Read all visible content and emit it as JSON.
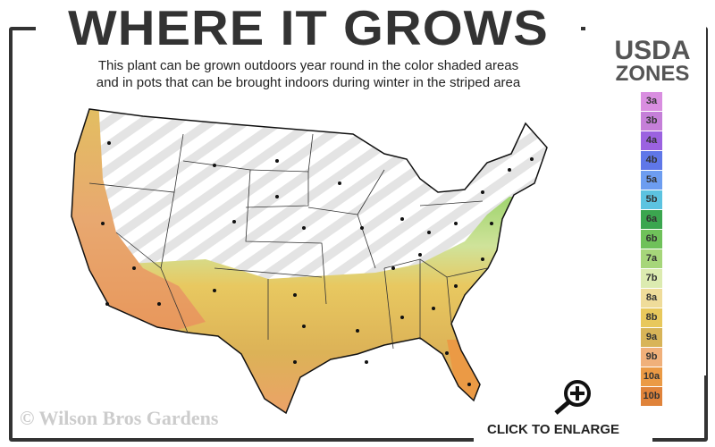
{
  "header": {
    "title": "WHERE IT GROWS",
    "subtitle_line1": "This plant can be grown outdoors year round in the color shaded areas",
    "subtitle_line2": "and in pots that can be brought indoors during winter in the striped area"
  },
  "legend": {
    "title_line1": "USDA",
    "title_line2": "ZONES",
    "zones": [
      {
        "label": "3a",
        "color": "#d98ee0"
      },
      {
        "label": "3b",
        "color": "#c57fd8"
      },
      {
        "label": "4a",
        "color": "#9b62e0"
      },
      {
        "label": "4b",
        "color": "#5f77e8"
      },
      {
        "label": "5a",
        "color": "#6d9df0"
      },
      {
        "label": "5b",
        "color": "#5cc3e0"
      },
      {
        "label": "6a",
        "color": "#3ba64f"
      },
      {
        "label": "6b",
        "color": "#6fc15a"
      },
      {
        "label": "7a",
        "color": "#a6d67a"
      },
      {
        "label": "7b",
        "color": "#dcebb0"
      },
      {
        "label": "8a",
        "color": "#efdc9a"
      },
      {
        "label": "8b",
        "color": "#e8c85c"
      },
      {
        "label": "9a",
        "color": "#d8b458"
      },
      {
        "label": "9b",
        "color": "#f0b07a"
      },
      {
        "label": "10a",
        "color": "#eb9a45"
      },
      {
        "label": "10b",
        "color": "#e0833a"
      }
    ]
  },
  "footer": {
    "copyright": "© Wilson Bros Gardens",
    "enlarge_label": "CLICK TO ENLARGE",
    "enlarge_icon": "zoom-in-magnifier-icon"
  }
}
